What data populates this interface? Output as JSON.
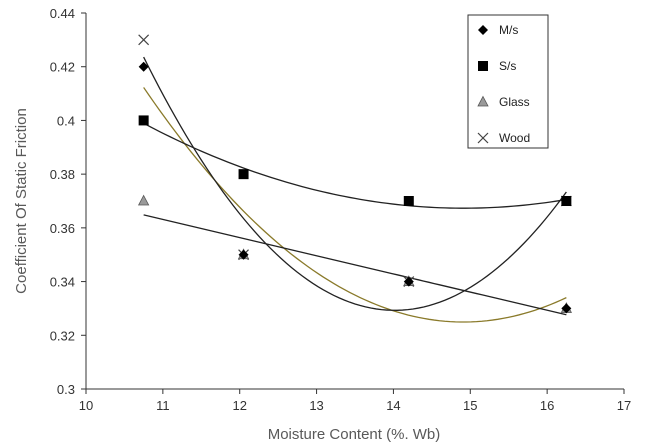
{
  "chart_data": {
    "type": "scatter",
    "title": "",
    "xlabel": "Moisture Content (%. Wb)",
    "ylabel": "Coefficient Of Static Friction",
    "xlim": [
      10,
      17
    ],
    "ylim": [
      0.3,
      0.44
    ],
    "x_ticks": [
      "10",
      "11",
      "12",
      "13",
      "14",
      "15",
      "16",
      "17"
    ],
    "y_ticks": [
      "0.3",
      "0.32",
      "0.34",
      "0.36",
      "0.38",
      "0.4",
      "0.42",
      "0.44"
    ],
    "grid": false,
    "legend_position": "top-right",
    "series": [
      {
        "name": "M/s",
        "marker": "diamond",
        "color": "#000000",
        "trendline": "polynomial-2",
        "trend_color": "#8a7a2a",
        "x": [
          10.75,
          12.05,
          14.2,
          16.25
        ],
        "y": [
          0.42,
          0.35,
          0.34,
          0.33
        ]
      },
      {
        "name": "S/s",
        "marker": "square",
        "color": "#000000",
        "trendline": "polynomial-2",
        "trend_color": "#222222",
        "x": [
          10.75,
          12.05,
          14.2,
          16.25
        ],
        "y": [
          0.4,
          0.38,
          0.37,
          0.37
        ]
      },
      {
        "name": "Glass",
        "marker": "triangle",
        "color": "#9a9a9a",
        "trendline": "linear",
        "trend_color": "#222222",
        "x": [
          10.75,
          12.05,
          14.2,
          16.25
        ],
        "y": [
          0.37,
          0.35,
          0.34,
          0.33
        ]
      },
      {
        "name": "Wood",
        "marker": "cross",
        "color": "#444444",
        "trendline": "polynomial-2",
        "trend_color": "#222222",
        "x": [
          10.75,
          12.05,
          14.2,
          16.25
        ],
        "y": [
          0.43,
          0.35,
          0.34,
          0.37
        ]
      }
    ]
  }
}
